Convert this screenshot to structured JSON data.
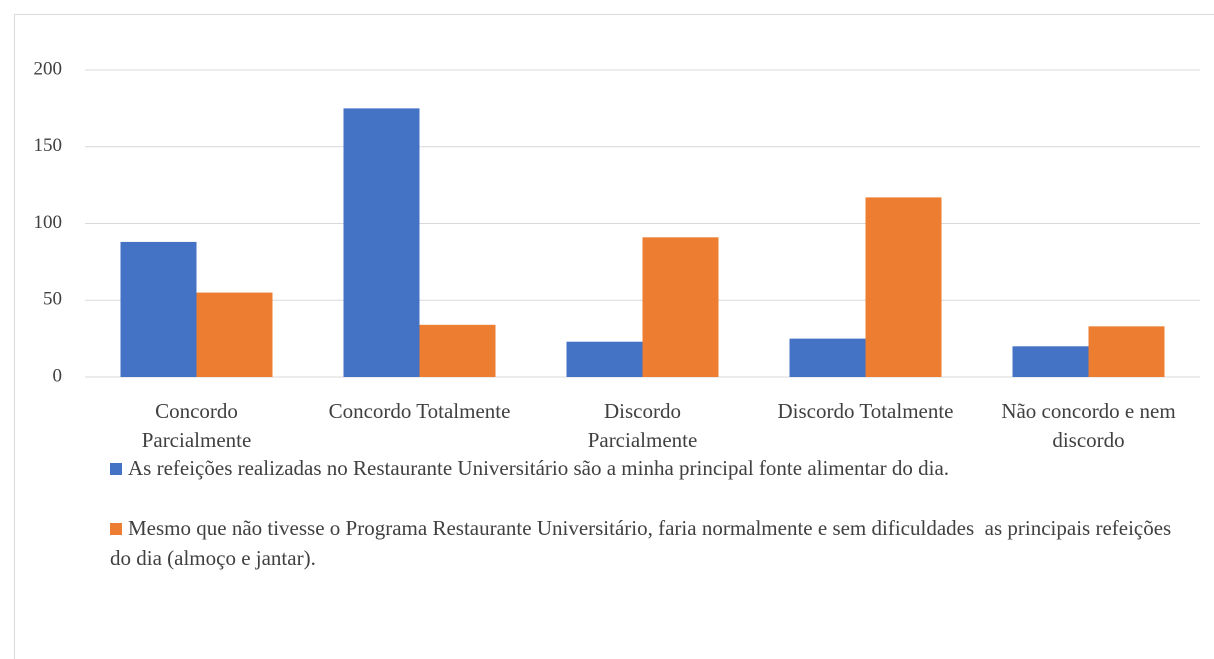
{
  "chart_data": {
    "type": "bar",
    "categories": [
      "Concordo Parcialmente",
      "Concordo Totalmente",
      "Discordo Parcialmente",
      "Discordo Totalmente",
      "Não concordo e nem discordo"
    ],
    "series": [
      {
        "name": "As refeições realizadas no Restaurante Universitário são a minha principal fonte alimentar do dia.",
        "color": "#4472c4",
        "values": [
          88,
          175,
          23,
          25,
          20
        ]
      },
      {
        "name": "Mesmo que não tivesse o Programa Restaurante Universitário, faria normalmente e sem dificuldades  as principais refeições do dia (almoço e jantar).",
        "color": "#ed7d31",
        "values": [
          55,
          34,
          91,
          117,
          33
        ]
      }
    ],
    "ylim": [
      0,
      200
    ],
    "yticks": [
      0,
      50,
      100,
      150,
      200
    ],
    "grid": true,
    "legend": "bottom"
  }
}
